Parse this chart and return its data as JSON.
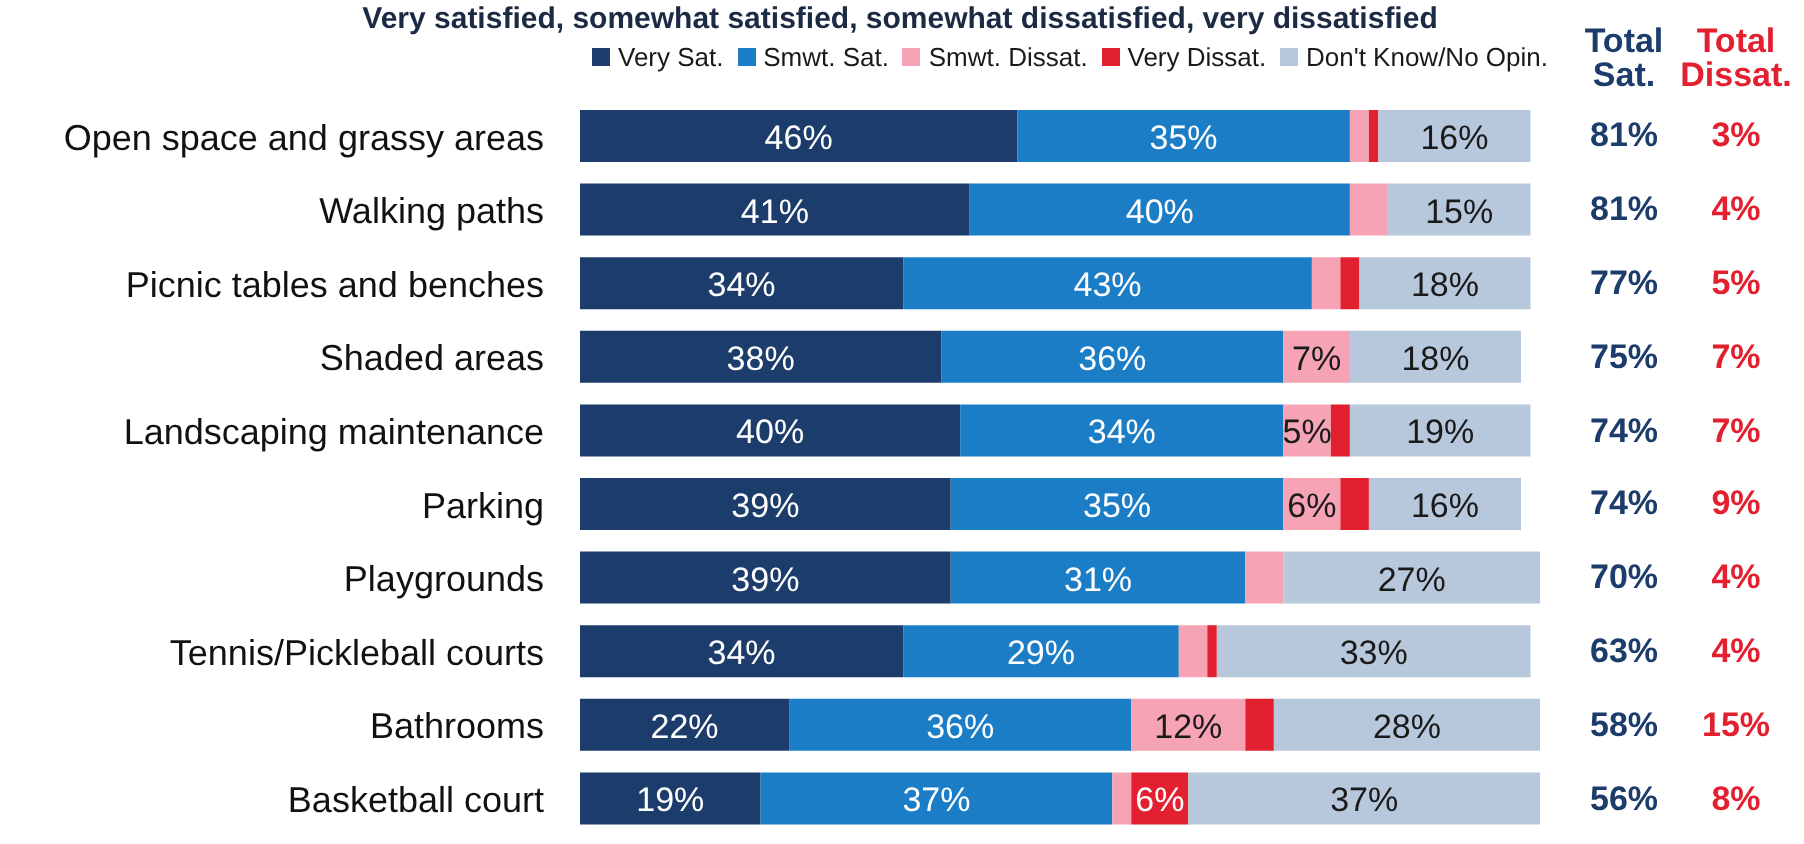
{
  "chart_data": {
    "type": "bar",
    "orientation": "horizontal",
    "stacked": true,
    "title": "Very satisfied, somewhat satisfied, somewhat dissatisfied, very dissatisfied",
    "categories": [
      "Open space and grassy areas",
      "Walking paths",
      "Picnic tables and benches",
      "Shaded areas",
      "Landscaping maintenance",
      "Parking",
      "Playgrounds",
      "Tennis/Pickleball courts",
      "Bathrooms",
      "Basketball court"
    ],
    "series": [
      {
        "name": "Very Sat.",
        "color": "#1c3d6b",
        "values": [
          46,
          41,
          34,
          38,
          40,
          39,
          39,
          34,
          22,
          19
        ],
        "value_labels": [
          "46%",
          "41%",
          "34%",
          "38%",
          "40%",
          "39%",
          "39%",
          "34%",
          "22%",
          "19%"
        ]
      },
      {
        "name": "Smwt. Sat.",
        "color": "#1a7dc5",
        "values": [
          35,
          40,
          43,
          36,
          34,
          35,
          31,
          29,
          36,
          37
        ],
        "value_labels": [
          "35%",
          "40%",
          "43%",
          "36%",
          "34%",
          "35%",
          "31%",
          "29%",
          "36%",
          "37%"
        ]
      },
      {
        "name": "Smwt. Dissat.",
        "color": "#f5a3b5",
        "values": [
          2,
          4,
          3,
          7,
          5,
          6,
          4,
          3,
          12,
          2
        ],
        "value_labels": [
          null,
          null,
          null,
          "7%",
          "5%",
          "6%",
          null,
          null,
          "12%",
          null
        ]
      },
      {
        "name": "Very Dissat.",
        "color": "#e3202f",
        "values": [
          1,
          0,
          2,
          0,
          2,
          3,
          0,
          1,
          3,
          6
        ],
        "value_labels": [
          null,
          null,
          null,
          null,
          null,
          null,
          null,
          null,
          null,
          "6%"
        ]
      },
      {
        "name": "Don't Know/No Opin.",
        "color": "#b8c8dc",
        "values": [
          16,
          15,
          18,
          18,
          19,
          16,
          27,
          33,
          28,
          37
        ],
        "value_labels": [
          "16%",
          "15%",
          "18%",
          "18%",
          "19%",
          "16%",
          "27%",
          "33%",
          "28%",
          "37%"
        ]
      }
    ],
    "tick_labels": "y",
    "legend": "top",
    "annotations": [
      "Total Sat.",
      "81%",
      "81%",
      "77%",
      "75%",
      "74%",
      "74%",
      "70%",
      "63%",
      "58%",
      "56%",
      "Total Dissat.",
      "3%",
      "4%",
      "5%",
      "7%",
      "7%",
      "9%",
      "4%",
      "4%",
      "15%",
      "8%"
    ]
  }
}
